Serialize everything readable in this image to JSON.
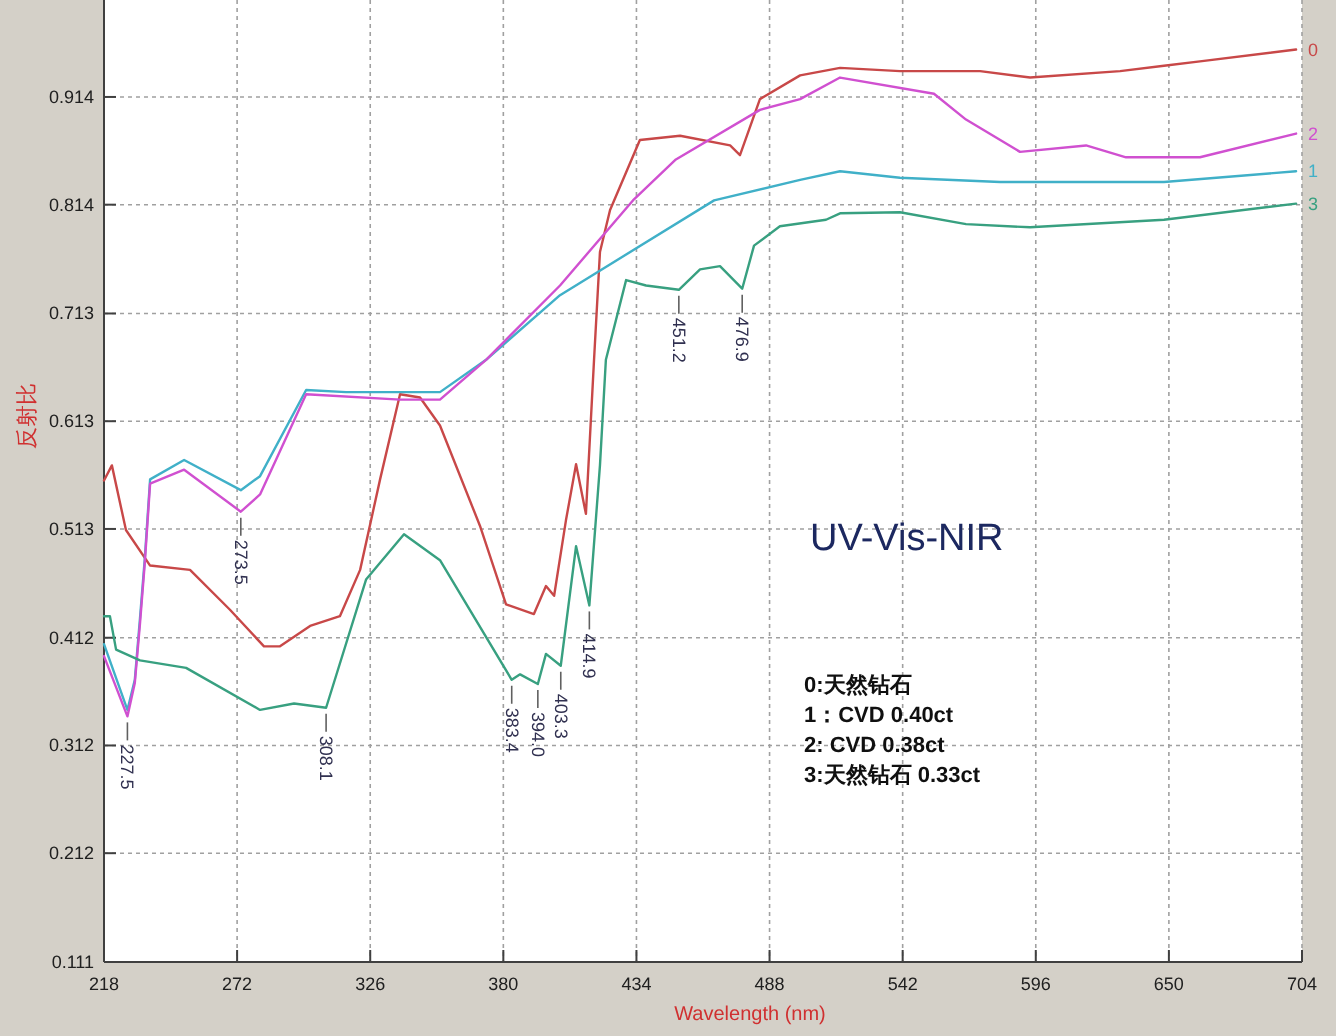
{
  "chart_data": {
    "type": "line",
    "xlabel": "Wavelength (nm)",
    "ylabel": "反射比",
    "xlim": [
      218,
      704
    ],
    "xticks": [
      218,
      272,
      326,
      380,
      434,
      488,
      542,
      596,
      650,
      704
    ],
    "ylim": [
      0.111,
      1.004
    ],
    "yticks": [
      0.111,
      0.212,
      0.312,
      0.412,
      0.513,
      0.613,
      0.713,
      0.814,
      0.914
    ],
    "grid": true,
    "legend": false,
    "marker": "none",
    "line_style": "solid",
    "series": [
      {
        "name": "0",
        "color": "#c84848",
        "x": [
          218,
          221.2,
          226.9,
          236.7,
          252.9,
          269.1,
          282.9,
          289.4,
          301.6,
          313.7,
          321.9,
          330,
          338.1,
          346.2,
          354.3,
          370.5,
          381.1,
          392.4,
          397.3,
          400.6,
          405.4,
          409.5,
          413.5,
          416.8,
          419.2,
          423.3,
          435.4,
          451.7,
          472,
          476,
          484.1,
          500.4,
          516.6,
          540.9,
          573.4,
          593.7,
          630.2,
          648,
          662.6,
          701.6
        ],
        "values": [
          0.558,
          0.572,
          0.512,
          0.479,
          0.475,
          0.438,
          0.404,
          0.404,
          0.423,
          0.432,
          0.475,
          0.559,
          0.638,
          0.635,
          0.609,
          0.516,
          0.443,
          0.434,
          0.46,
          0.451,
          0.521,
          0.573,
          0.527,
          0.67,
          0.77,
          0.809,
          0.874,
          0.878,
          0.869,
          0.86,
          0.912,
          0.934,
          0.941,
          0.938,
          0.938,
          0.932,
          0.938,
          0.943,
          0.947,
          0.958
        ]
      },
      {
        "name": "1",
        "color": "#40b0c8",
        "x": [
          218,
          227.5,
          230.5,
          232.6,
          234.5,
          236.7,
          250.5,
          273.5,
          281.3,
          300,
          316.2,
          338.1,
          354.3,
          373,
          403,
          465.5,
          500.4,
          516.6,
          540.9,
          581.5,
          648,
          701.6
        ],
        "values": [
          0.406,
          0.345,
          0.373,
          0.43,
          0.484,
          0.559,
          0.577,
          0.549,
          0.562,
          0.642,
          0.64,
          0.64,
          0.64,
          0.67,
          0.73,
          0.818,
          0.837,
          0.845,
          0.839,
          0.835,
          0.835,
          0.845
        ]
      },
      {
        "name": "2",
        "color": "#d050d0",
        "x": [
          218,
          227.5,
          230.5,
          232.6,
          234.5,
          236.7,
          250.5,
          273.5,
          281.3,
          300,
          338.1,
          354.3,
          373,
          403,
          433,
          450,
          484.1,
          500.4,
          516.6,
          554.7,
          567.7,
          589.6,
          616.4,
          632.6,
          662.6,
          701.6
        ],
        "values": [
          0.395,
          0.339,
          0.37,
          0.425,
          0.48,
          0.555,
          0.568,
          0.529,
          0.545,
          0.638,
          0.633,
          0.633,
          0.67,
          0.739,
          0.819,
          0.856,
          0.902,
          0.912,
          0.932,
          0.917,
          0.893,
          0.863,
          0.869,
          0.858,
          0.858,
          0.88
        ]
      },
      {
        "name": "3",
        "color": "#38a080",
        "x": [
          218,
          220.4,
          222.9,
          232.6,
          251.3,
          281.3,
          295.1,
          308.1,
          324.3,
          339.7,
          354.3,
          383.4,
          386.8,
          394.0,
          397.3,
          403.3,
          409.5,
          414.9,
          419.2,
          421.6,
          429.8,
          437.9,
          451.2,
          459.8,
          467.9,
          476.9,
          481.7,
          492.2,
          510.9,
          516.6,
          540.9,
          567.7,
          593.7,
          648,
          701.6
        ],
        "values": [
          0.432,
          0.432,
          0.401,
          0.391,
          0.384,
          0.345,
          0.351,
          0.347,
          0.466,
          0.508,
          0.484,
          0.373,
          0.378,
          0.369,
          0.397,
          0.386,
          0.497,
          0.442,
          0.572,
          0.67,
          0.744,
          0.739,
          0.735,
          0.754,
          0.757,
          0.736,
          0.776,
          0.794,
          0.8,
          0.806,
          0.807,
          0.796,
          0.793,
          0.8,
          0.815
        ]
      }
    ],
    "annotations": [
      {
        "text": "227.5",
        "x": 227.5,
        "y": 0.339
      },
      {
        "text": "273.5",
        "x": 273.5,
        "y": 0.529
      },
      {
        "text": "308.1",
        "x": 308.1,
        "y": 0.347
      },
      {
        "text": "383.4",
        "x": 383.4,
        "y": 0.373
      },
      {
        "text": "394.0",
        "x": 394.0,
        "y": 0.369
      },
      {
        "text": "403.3",
        "x": 403.3,
        "y": 0.386
      },
      {
        "text": "414.9",
        "x": 414.9,
        "y": 0.442
      },
      {
        "text": "451.2",
        "x": 451.2,
        "y": 0.735
      },
      {
        "text": "476.9",
        "x": 476.9,
        "y": 0.736
      },
      "UV-Vis-NIR",
      "0:天然钻石",
      "1：CVD 0.40ct",
      "2: CVD 0.38ct",
      "3:天然钻石 0.33ct"
    ]
  }
}
